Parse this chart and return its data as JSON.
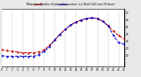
{
  "title": "Milwaukee Weather Outdoor Temperature (vs) Wind Chill (Last 24 Hours)",
  "temp": [
    18,
    17,
    16,
    15,
    14,
    14,
    14,
    15,
    18,
    24,
    32,
    40,
    47,
    53,
    57,
    60,
    62,
    63,
    62,
    58,
    52,
    44,
    38,
    33
  ],
  "windchill": [
    10,
    9,
    9,
    9,
    9,
    9,
    9,
    11,
    16,
    22,
    32,
    40,
    47,
    53,
    57,
    60,
    62,
    63,
    62,
    58,
    52,
    38,
    28,
    26
  ],
  "temp_color": "#cc0000",
  "windchill_color": "#0000cc",
  "background": "#e8e8e8",
  "plot_bg": "#ffffff",
  "ylim": [
    -5,
    75
  ],
  "xlim": [
    0,
    23
  ],
  "yticks": [
    10,
    20,
    30,
    40,
    50,
    60,
    70
  ],
  "num_points": 24,
  "grid_color": "#aaaaaa",
  "line_width": 0.7,
  "marker_size": 1.2,
  "title_fontsize": 2.0,
  "tick_fontsize": 2.0
}
